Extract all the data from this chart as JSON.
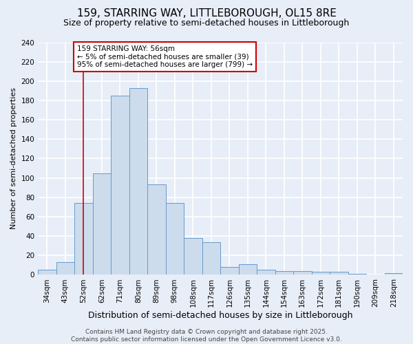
{
  "title1": "159, STARRING WAY, LITTLEBOROUGH, OL15 8RE",
  "title2": "Size of property relative to semi-detached houses in Littleborough",
  "xlabel": "Distribution of semi-detached houses by size in Littleborough",
  "ylabel": "Number of semi-detached properties",
  "categories": [
    "34sqm",
    "43sqm",
    "52sqm",
    "62sqm",
    "71sqm",
    "80sqm",
    "89sqm",
    "98sqm",
    "108sqm",
    "117sqm",
    "126sqm",
    "135sqm",
    "144sqm",
    "154sqm",
    "163sqm",
    "172sqm",
    "181sqm",
    "190sqm",
    "209sqm",
    "218sqm"
  ],
  "values": [
    5,
    13,
    74,
    105,
    185,
    193,
    93,
    74,
    38,
    34,
    8,
    11,
    5,
    4,
    4,
    3,
    3,
    1,
    0,
    2
  ],
  "bar_color": "#ccdcec",
  "bar_edge_color": "#6699cc",
  "red_line_index": 2,
  "annotation_line1": "159 STARRING WAY: 56sqm",
  "annotation_line2": "← 5% of semi-detached houses are smaller (39)",
  "annotation_line3": "95% of semi-detached houses are larger (799) →",
  "annotation_box_color": "white",
  "annotation_box_edge_color": "#cc0000",
  "red_line_color": "#cc0000",
  "ylim": [
    0,
    240
  ],
  "yticks": [
    0,
    20,
    40,
    60,
    80,
    100,
    120,
    140,
    160,
    180,
    200,
    220,
    240
  ],
  "background_color": "#e8eef8",
  "grid_color": "white",
  "footer_text": "Contains HM Land Registry data © Crown copyright and database right 2025.\nContains public sector information licensed under the Open Government Licence v3.0.",
  "title1_fontsize": 11,
  "title2_fontsize": 9,
  "xlabel_fontsize": 9,
  "ylabel_fontsize": 8,
  "tick_fontsize": 7.5,
  "annotation_fontsize": 7.5,
  "footer_fontsize": 6.5
}
